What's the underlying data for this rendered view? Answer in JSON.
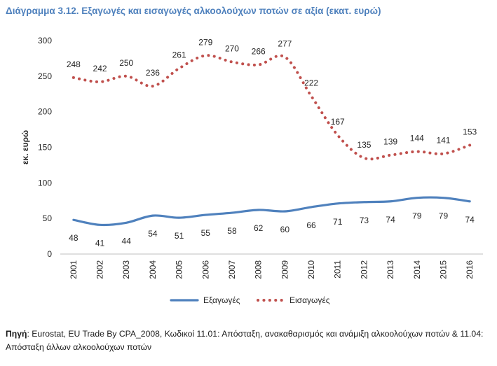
{
  "title": "Διάγραμμα 3.12. Εξαγωγές και εισαγωγές αλκοολούχων ποτών σε αξία (εκατ. ευρώ)",
  "source": {
    "label": "Πηγή",
    "text": ": Eurostat, EU Trade By CPA_2008, Κωδικοί 11.01: Απόσταξη, ανακαθαρισμός και ανάμιξη αλκοολούχων ποτών & 11.04: Απόσταξη άλλων αλκοολούχων ποτών"
  },
  "chart_data": {
    "type": "line",
    "ylabel": "εκ. ευρώ",
    "xlabel": "",
    "ylim": [
      0,
      300
    ],
    "yticks": [
      0,
      50,
      100,
      150,
      200,
      250,
      300
    ],
    "categories": [
      "2001",
      "2002",
      "2003",
      "2004",
      "2005",
      "2006",
      "2007",
      "2008",
      "2009",
      "2010",
      "2011",
      "2012",
      "2013",
      "2014",
      "2015",
      "2016"
    ],
    "series": [
      {
        "name": "Εξαγωγές",
        "color": "#4f81bd",
        "style": "solid",
        "values": [
          48,
          41,
          44,
          54,
          51,
          55,
          58,
          62,
          60,
          66,
          71,
          73,
          74,
          79,
          79,
          74
        ]
      },
      {
        "name": "Εισαγωγές",
        "color": "#c0504d",
        "style": "dotted",
        "values": [
          248,
          242,
          250,
          236,
          261,
          279,
          270,
          266,
          277,
          222,
          167,
          135,
          139,
          144,
          141,
          153
        ]
      }
    ],
    "legend": "bottom",
    "grid": false
  }
}
